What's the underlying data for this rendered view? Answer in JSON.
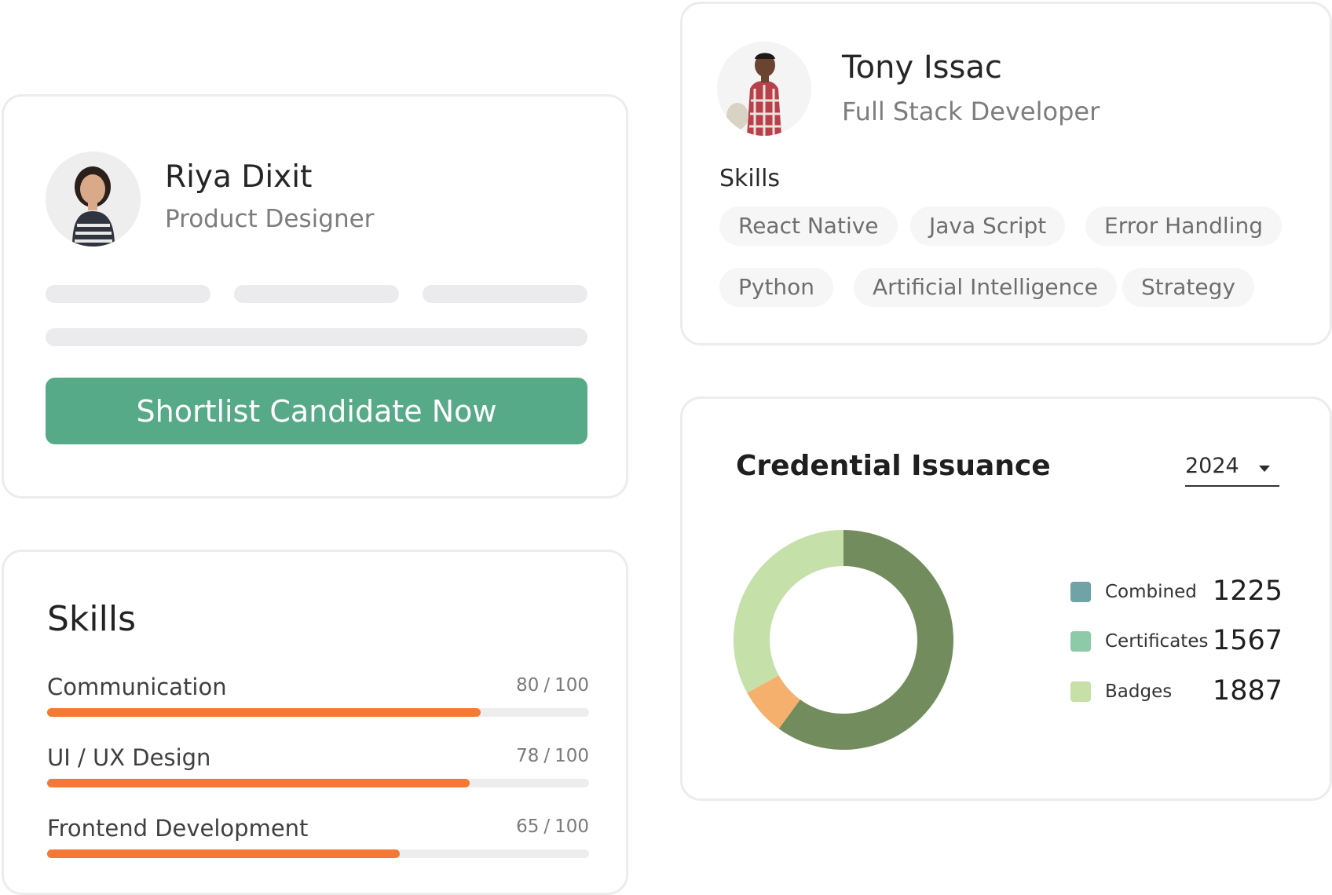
{
  "candidate_card": {
    "name": "Riya Dixit",
    "role": "Product Designer",
    "shortlist_label": "Shortlist Candidate Now",
    "button_color": "#56aa88"
  },
  "skills_card": {
    "heading": "Skills",
    "separator": "/",
    "bar_color": "#f57934",
    "skills": [
      {
        "label": "Communication",
        "score": 80,
        "max": 100
      },
      {
        "label": "UI / UX Design",
        "score": 78,
        "max": 100
      },
      {
        "label": "Frontend Development",
        "score": 65,
        "max": 100
      }
    ]
  },
  "profile_card": {
    "name": "Tony Issac",
    "role": "Full Stack Developer",
    "skills_heading": "Skills",
    "skills": [
      "React Native",
      "Java Script",
      "Error Handling",
      "Python",
      "Artificial Intelligence",
      "Strategy"
    ]
  },
  "chart_card": {
    "title": "Credential Issuance",
    "year": "2024",
    "legend": [
      {
        "label": "Combined",
        "value": "1225",
        "color": "#6fa3a5"
      },
      {
        "label": "Certificates",
        "value": "1567",
        "color": "#8ccaa8"
      },
      {
        "label": "Badges",
        "value": "1887",
        "color": "#c6e0a8"
      }
    ]
  },
  "chart_data": {
    "type": "pie",
    "title": "Credential Issuance",
    "donut": true,
    "slices": [
      {
        "value": 60,
        "color": "#738c5e"
      },
      {
        "value": 7,
        "color": "#f5b06e"
      },
      {
        "value": 33,
        "color": "#c5e0a9"
      }
    ]
  }
}
